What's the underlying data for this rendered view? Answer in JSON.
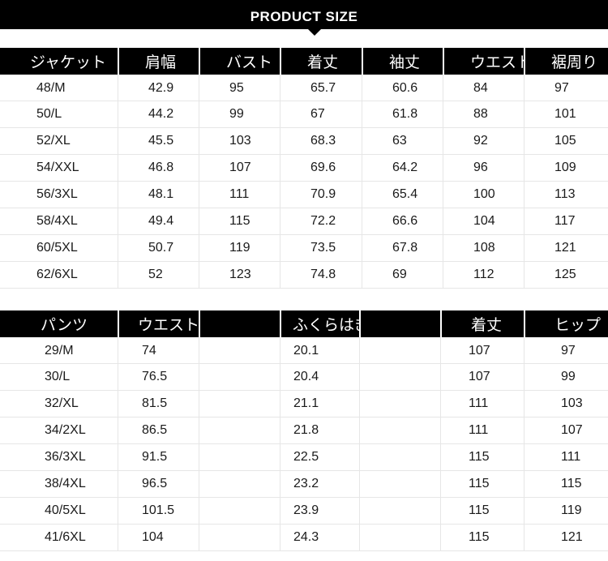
{
  "banner": {
    "title": "PRODUCT SIZE"
  },
  "jacket": {
    "headers": [
      "ジャケット",
      "肩幅",
      "バスト",
      "着丈",
      "袖丈",
      "ウエスト",
      "裾周り"
    ],
    "rows": [
      [
        "48/M",
        "42.9",
        "95",
        "65.7",
        "60.6",
        "84",
        "97"
      ],
      [
        "50/L",
        "44.2",
        "99",
        "67",
        "61.8",
        "88",
        "101"
      ],
      [
        "52/XL",
        "45.5",
        "103",
        "68.3",
        "63",
        "92",
        "105"
      ],
      [
        "54/XXL",
        "46.8",
        "107",
        "69.6",
        "64.2",
        "96",
        "109"
      ],
      [
        "56/3XL",
        "48.1",
        "111",
        "70.9",
        "65.4",
        "100",
        "113"
      ],
      [
        "58/4XL",
        "49.4",
        "115",
        "72.2",
        "66.6",
        "104",
        "117"
      ],
      [
        "60/5XL",
        "50.7",
        "119",
        "73.5",
        "67.8",
        "108",
        "121"
      ],
      [
        "62/6XL",
        "52",
        "123",
        "74.8",
        "69",
        "112",
        "125"
      ]
    ]
  },
  "pants": {
    "headers": [
      "パンツ",
      "ウエスト",
      "",
      "ふくらはぎ",
      "",
      "着丈",
      "ヒップ"
    ],
    "rows": [
      [
        "29/M",
        "74",
        "",
        "20.1",
        "",
        "107",
        "97"
      ],
      [
        "30/L",
        "76.5",
        "",
        "20.4",
        "",
        "107",
        "99"
      ],
      [
        "32/XL",
        "81.5",
        "",
        "21.1",
        "",
        "111",
        "103"
      ],
      [
        "34/2XL",
        "86.5",
        "",
        "21.8",
        "",
        "111",
        "107"
      ],
      [
        "36/3XL",
        "91.5",
        "",
        "22.5",
        "",
        "115",
        "111"
      ],
      [
        "38/4XL",
        "96.5",
        "",
        "23.2",
        "",
        "115",
        "115"
      ],
      [
        "40/5XL",
        "101.5",
        "",
        "23.9",
        "",
        "115",
        "119"
      ],
      [
        "41/6XL",
        "104",
        "",
        "24.3",
        "",
        "115",
        "121"
      ]
    ]
  }
}
